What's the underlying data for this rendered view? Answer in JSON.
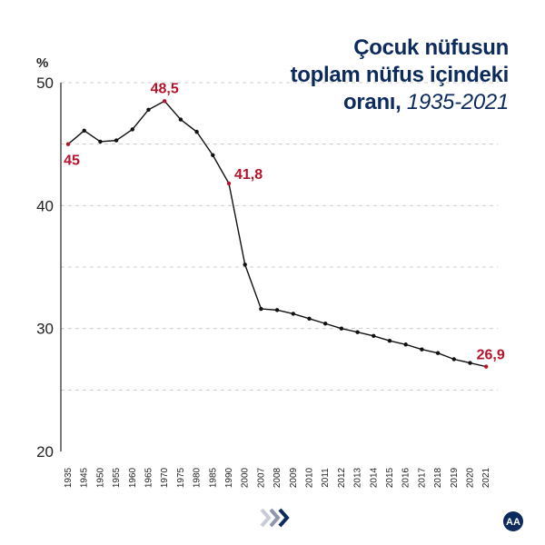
{
  "title": {
    "line1": "Çocuk nüfusun",
    "line2": "toplam nüfus içindeki",
    "line3_bold": "oranı,",
    "line3_light": " 1935-2021"
  },
  "logo_text": "AA",
  "colors": {
    "title": "#0d2a5c",
    "line": "#111111",
    "highlight": "#b5122b",
    "grid": "#cccccc"
  },
  "chart_data": {
    "type": "line",
    "title": "Çocuk nüfusun toplam nüfus içindeki oranı, 1935-2021",
    "ylabel": "%",
    "xlabel": "",
    "ylim": [
      20,
      50
    ],
    "yticks": [
      20,
      30,
      40,
      50
    ],
    "grid": "dashed, every 5 units",
    "categories": [
      "1935",
      "1945",
      "1950",
      "1955",
      "1960",
      "1965",
      "1970",
      "1975",
      "1980",
      "1985",
      "1990",
      "2000",
      "2007",
      "2008",
      "2009",
      "2010",
      "2011",
      "2012",
      "2013",
      "2014",
      "2015",
      "2016",
      "2017",
      "2018",
      "2019",
      "2020",
      "2021"
    ],
    "values": [
      45.0,
      46.1,
      45.2,
      45.3,
      46.2,
      47.8,
      48.5,
      47.0,
      46.0,
      44.1,
      41.8,
      35.2,
      31.6,
      31.5,
      31.2,
      30.8,
      30.4,
      30.0,
      29.7,
      29.4,
      29.0,
      28.7,
      28.3,
      28.0,
      27.5,
      27.2,
      26.9
    ],
    "annotations": [
      {
        "category": "1935",
        "label": "45",
        "position": "below"
      },
      {
        "category": "1970",
        "label": "48,5",
        "position": "above"
      },
      {
        "category": "1990",
        "label": "41,8",
        "position": "right"
      },
      {
        "category": "2021",
        "label": "26,9",
        "position": "above-right"
      }
    ]
  }
}
